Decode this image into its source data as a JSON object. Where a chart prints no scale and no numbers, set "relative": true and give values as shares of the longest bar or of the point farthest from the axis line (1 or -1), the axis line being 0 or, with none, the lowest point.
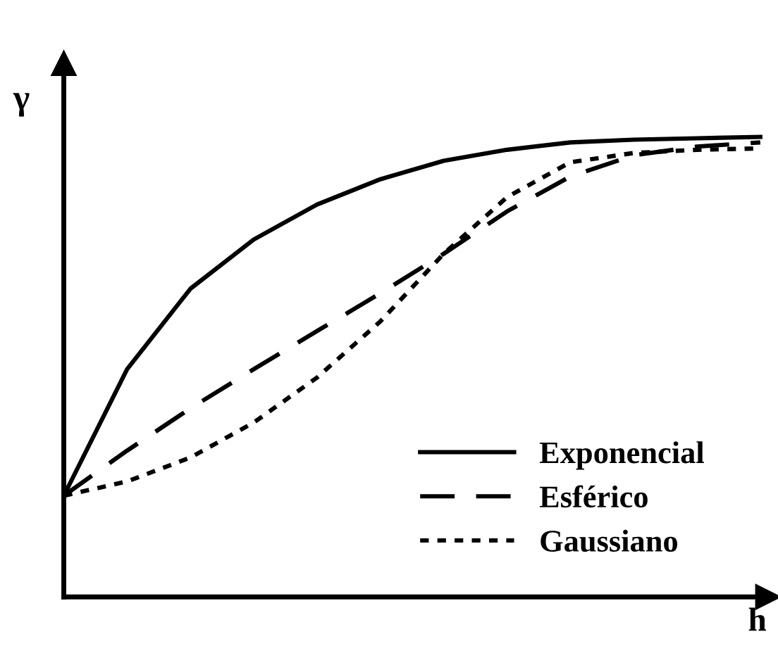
{
  "chart_data": {
    "type": "line",
    "relative": true,
    "xlabel": "h",
    "ylabel": "γ",
    "legend": "bottom right",
    "grid": false,
    "marker": "none",
    "categories": [
      null,
      null,
      null,
      null,
      null,
      null,
      null,
      null,
      null,
      null,
      null,
      null
    ],
    "series": [
      {
        "name": "Exponencial",
        "color": "#000000",
        "line_style": "solid",
        "values": [
          0.22,
          0.495,
          0.67,
          0.777,
          0.853,
          0.908,
          0.948,
          0.972,
          0.988,
          0.994,
          0.997,
          1.0
        ]
      },
      {
        "name": "Esférico",
        "color": "#000000",
        "line_style": "dashed",
        "values": [
          0.22,
          0.318,
          0.41,
          0.495,
          0.578,
          0.66,
          0.746,
          0.838,
          0.914,
          0.96,
          0.979,
          0.988
        ]
      },
      {
        "name": "Gaussiano",
        "color": "#000000",
        "line_style": "dotted",
        "values": [
          0.22,
          0.251,
          0.303,
          0.379,
          0.477,
          0.599,
          0.746,
          0.869,
          0.945,
          0.965,
          0.972,
          0.975
        ]
      }
    ]
  }
}
